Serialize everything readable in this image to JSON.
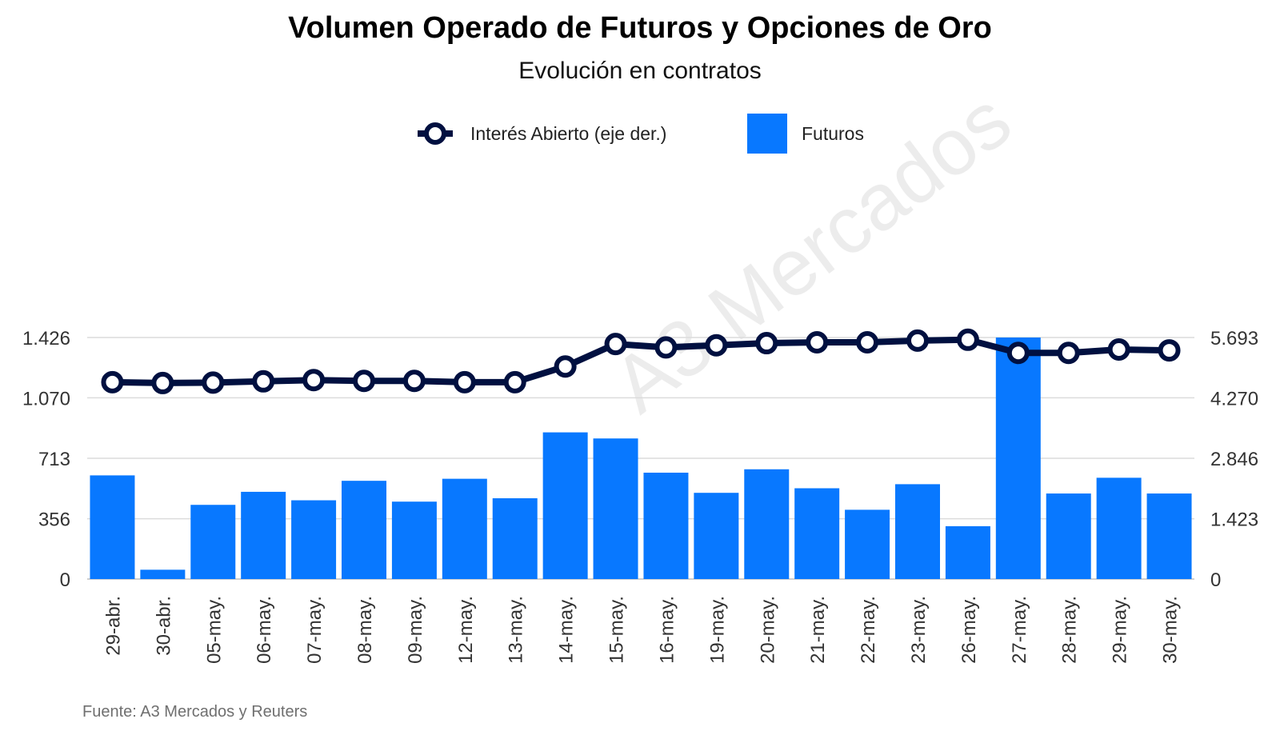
{
  "chart_data": {
    "type": "bar",
    "title": "Volumen Operado de Futuros y Opciones de Oro",
    "subtitle": "Evolución en contratos",
    "source": "Fuente: A3 Mercados y Reuters",
    "watermark": "A3 Mercados",
    "legend_position": "top-center",
    "grid": true,
    "categories": [
      "29-abr.",
      "30-abr.",
      "05-may.",
      "06-may.",
      "07-may.",
      "08-may.",
      "09-may.",
      "12-may.",
      "13-may.",
      "14-may.",
      "15-may.",
      "16-may.",
      "19-may.",
      "20-may.",
      "21-may.",
      "22-may.",
      "23-may.",
      "26-may.",
      "27-may.",
      "28-may.",
      "29-may.",
      "30-may."
    ],
    "left_axis": {
      "ticks": [
        "0",
        "356",
        "713",
        "1.070",
        "1.426"
      ],
      "tick_values": [
        0,
        356,
        713,
        1070,
        1426
      ],
      "range": [
        0,
        1426
      ]
    },
    "right_axis": {
      "ticks": [
        "0",
        "1.423",
        "2.846",
        "4.270",
        "5.693"
      ],
      "tick_values": [
        0,
        1423,
        2846,
        4270,
        5693
      ],
      "range": [
        0,
        5693
      ]
    },
    "series": [
      {
        "name": "Interés Abierto (eje der.)",
        "type": "line",
        "axis": "right",
        "color": "#001040",
        "values": [
          4640,
          4620,
          4630,
          4660,
          4690,
          4670,
          4670,
          4640,
          4640,
          5010,
          5540,
          5460,
          5510,
          5560,
          5580,
          5580,
          5620,
          5640,
          5330,
          5330,
          5410,
          5390
        ]
      },
      {
        "name": "Futuros",
        "type": "bar",
        "axis": "left",
        "color": "#0878FF",
        "values": [
          612,
          55,
          438,
          515,
          465,
          580,
          457,
          592,
          477,
          866,
          830,
          628,
          509,
          648,
          536,
          409,
          560,
          312,
          1426,
          505,
          598,
          505
        ]
      }
    ]
  }
}
